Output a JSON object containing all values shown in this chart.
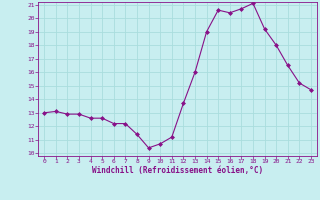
{
  "x": [
    0,
    1,
    2,
    3,
    4,
    5,
    6,
    7,
    8,
    9,
    10,
    11,
    12,
    13,
    14,
    15,
    16,
    17,
    18,
    19,
    20,
    21,
    22,
    23
  ],
  "y": [
    13.0,
    13.1,
    12.9,
    12.9,
    12.6,
    12.6,
    12.2,
    12.2,
    11.4,
    10.4,
    10.7,
    11.2,
    13.7,
    16.0,
    19.0,
    20.6,
    20.4,
    20.7,
    21.1,
    19.2,
    18.0,
    16.5,
    15.2,
    14.7
  ],
  "line_color": "#881188",
  "marker": "D",
  "marker_size": 2.0,
  "bg_color": "#c8eef0",
  "grid_color": "#aadddd",
  "xlabel": "Windchill (Refroidissement éolien,°C)",
  "xlabel_color": "#881188",
  "ylim": [
    10,
    21
  ],
  "xlim": [
    -0.5,
    23.5
  ],
  "yticks": [
    10,
    11,
    12,
    13,
    14,
    15,
    16,
    17,
    18,
    19,
    20,
    21
  ],
  "xticks": [
    0,
    1,
    2,
    3,
    4,
    5,
    6,
    7,
    8,
    9,
    10,
    11,
    12,
    13,
    14,
    15,
    16,
    17,
    18,
    19,
    20,
    21,
    22,
    23
  ]
}
